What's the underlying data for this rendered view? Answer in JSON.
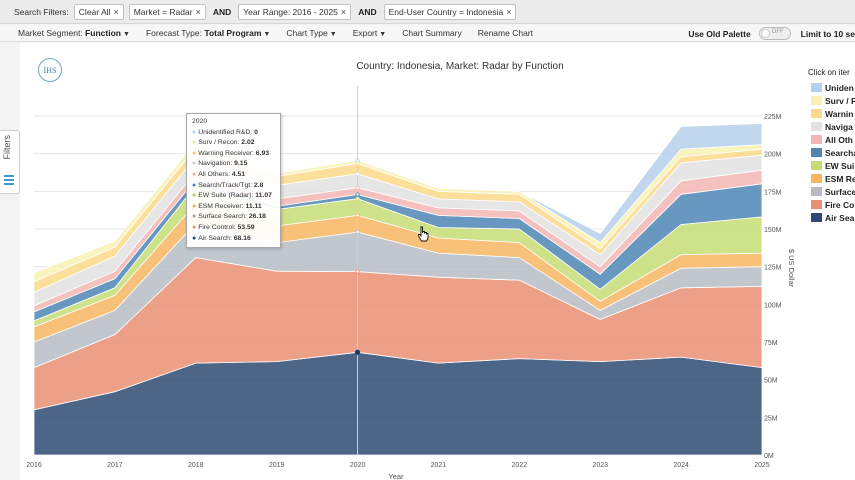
{
  "filter_bar": {
    "label": "Search Filters:",
    "clear": "Clear All",
    "market": "Market = Radar",
    "and1": "AND",
    "year_range": "Year Range: 2016 - 2025",
    "and2": "AND",
    "country": "End-User Country = Indonesia",
    "close_glyph": "×"
  },
  "toolbar": {
    "segment_label": "Market Segment:",
    "segment_value": "Function",
    "forecast_label": "Forecast Type:",
    "forecast_value": "Total Program",
    "chart_type": "Chart Type",
    "export": "Export",
    "summary": "Chart Summary",
    "rename": "Rename Chart",
    "old_palette": "Use Old Palette",
    "toggle_state": "OFF",
    "limit": "Limit to 10 se"
  },
  "side_tab": {
    "label": "Filters"
  },
  "logo": {
    "text": "IHS"
  },
  "chart_data": {
    "type": "area",
    "stacked": true,
    "title": "Country: Indonesia, Market: Radar by Function",
    "xlabel": "Year",
    "ylabel": "$ US Dollar",
    "ylim": [
      0,
      225
    ],
    "y_unit": "M",
    "y_ticks": [
      "0M",
      "25M",
      "50M",
      "75M",
      "100M",
      "125M",
      "150M",
      "175M",
      "200M",
      "225M"
    ],
    "x": [
      "2016",
      "2017",
      "2018",
      "2019",
      "2020",
      "2021",
      "2022",
      "2023",
      "2024",
      "2025"
    ],
    "series": [
      {
        "name": "Air Search",
        "color": "#2e4a72",
        "values": [
          30,
          42,
          61,
          62,
          68.16,
          61,
          64,
          62,
          65,
          58
        ]
      },
      {
        "name": "Fire Control",
        "color": "#e98f73",
        "values": [
          28,
          38,
          70,
          60,
          53.59,
          57,
          52,
          28,
          46,
          54
        ]
      },
      {
        "name": "Surface Search",
        "color": "#b7bcc4",
        "values": [
          17,
          16,
          23,
          19,
          26.18,
          16,
          15,
          6,
          13,
          13
        ]
      },
      {
        "name": "ESM Receiver",
        "color": "#f7b661",
        "values": [
          10,
          10,
          13,
          11,
          11.11,
          10,
          10,
          6,
          9,
          9
        ]
      },
      {
        "name": "EW Suite (Radar)",
        "color": "#c5dd74",
        "values": [
          4,
          5,
          12,
          11,
          11.07,
          7,
          9,
          8,
          20,
          24
        ]
      },
      {
        "name": "Search/Track/Tgt",
        "color": "#4e86b5",
        "values": [
          6,
          6,
          4,
          2,
          2.8,
          8,
          7,
          10,
          20,
          22
        ]
      },
      {
        "name": "All Others",
        "color": "#f3b6b4",
        "values": [
          4,
          5,
          5,
          5,
          4.51,
          5,
          5,
          5,
          9,
          9
        ]
      },
      {
        "name": "Navigation",
        "color": "#e2e2e2",
        "values": [
          9,
          10,
          10,
          9,
          9.15,
          6,
          6,
          8,
          12,
          10
        ]
      },
      {
        "name": "Warning Receiver",
        "color": "#fbd98a",
        "values": [
          7,
          6,
          6,
          6,
          6.93,
          5,
          5,
          4,
          4,
          4
        ]
      },
      {
        "name": "Surv / Recon",
        "color": "#f8f1b3",
        "values": [
          6,
          4,
          4,
          2,
          2.02,
          2,
          2,
          4,
          5,
          3
        ]
      },
      {
        "name": "Unidentified R&D",
        "color": "#b5d0ea",
        "values": [
          0,
          0,
          0,
          0,
          0,
          0,
          0,
          6,
          15,
          14
        ]
      }
    ]
  },
  "tooltip": {
    "year": "2020",
    "rows": [
      {
        "name": "Unidentified R&D:",
        "value": "0",
        "color": "#b5d0ea"
      },
      {
        "name": "Surv / Recon:",
        "value": "2.02",
        "color": "#ece3a0"
      },
      {
        "name": "Warning Receiver:",
        "value": "6.93",
        "color": "#f5c86a"
      },
      {
        "name": "Navigation:",
        "value": "9.15",
        "color": "#cfcfcf"
      },
      {
        "name": "All Others:",
        "value": "4.51",
        "color": "#f0a6a4"
      },
      {
        "name": "Search/Track/Tgt:",
        "value": "2.8",
        "color": "#4e86b5"
      },
      {
        "name": "EW Suite (Radar):",
        "value": "11.07",
        "color": "#a9c84f"
      },
      {
        "name": "ESM Receiver:",
        "value": "11.11",
        "color": "#f7a844"
      },
      {
        "name": "Surface Search:",
        "value": "26.18",
        "color": "#9aa0a8"
      },
      {
        "name": "Fire Control:",
        "value": "53.59",
        "color": "#e98f73"
      },
      {
        "name": "Air Search:",
        "value": "68.16",
        "color": "#2e4a72"
      }
    ]
  },
  "legend": {
    "title": "Click on iter",
    "items": [
      {
        "label": "Uniden",
        "color": "#b5d0ea"
      },
      {
        "label": "Surv / F",
        "color": "#f8f1b3"
      },
      {
        "label": "Warnin",
        "color": "#fbd98a"
      },
      {
        "label": "Naviga",
        "color": "#e2e2e2"
      },
      {
        "label": "All Oth",
        "color": "#f3b6b4"
      },
      {
        "label": "Searcha",
        "color": "#4e86b5"
      },
      {
        "label": "EW Sui",
        "color": "#c5dd74"
      },
      {
        "label": "ESM Re",
        "color": "#f7b661"
      },
      {
        "label": "Surface",
        "color": "#b7bcc4"
      },
      {
        "label": "Fire Co",
        "color": "#e98f73"
      },
      {
        "label": "Air Sea",
        "color": "#2e4a72"
      }
    ]
  }
}
